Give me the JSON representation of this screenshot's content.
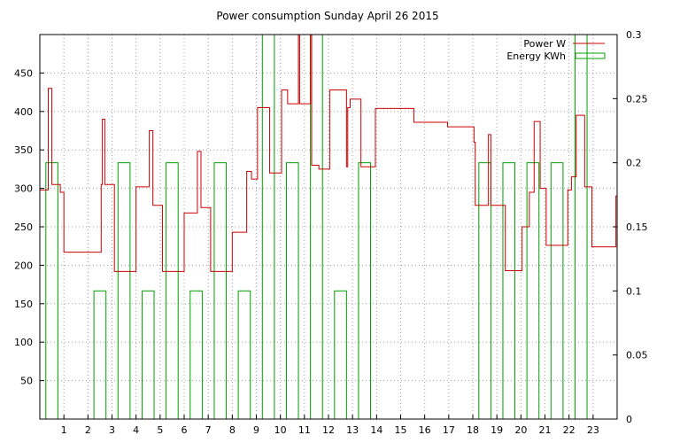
{
  "chart_data": {
    "type": "line",
    "title": "Power consumption Sunday April 26 2015",
    "xlabel": "",
    "ylabel": "",
    "x_ticks": [
      "1",
      "2",
      "3",
      "4",
      "5",
      "6",
      "7",
      "8",
      "9",
      "10",
      "11",
      "12",
      "13",
      "14",
      "15",
      "16",
      "17",
      "18",
      "19",
      "20",
      "21",
      "22",
      "23"
    ],
    "xlim": [
      0,
      24
    ],
    "ylim_left": [
      0,
      500
    ],
    "ylim_right": [
      0,
      0.3
    ],
    "y_ticks_left": [
      "50",
      "100",
      "150",
      "200",
      "250",
      "300",
      "350",
      "400",
      "450"
    ],
    "y_ticks_right": [
      "0",
      "0.05",
      "0.1",
      "0.15",
      "0.2",
      "0.25",
      "0.3"
    ],
    "grid": true,
    "legend_position": "top-right",
    "colors": {
      "power": "#cc0000",
      "energy": "#00a000"
    },
    "series": [
      {
        "name": "Power W",
        "axis": "left",
        "style": "step",
        "points": [
          [
            0.0,
            298
          ],
          [
            0.3,
            298
          ],
          [
            0.35,
            430
          ],
          [
            0.45,
            430
          ],
          [
            0.5,
            305
          ],
          [
            0.75,
            305
          ],
          [
            0.85,
            295
          ],
          [
            1.0,
            217
          ],
          [
            2.5,
            217
          ],
          [
            2.55,
            305
          ],
          [
            2.6,
            390
          ],
          [
            2.7,
            305
          ],
          [
            3.0,
            305
          ],
          [
            3.1,
            192
          ],
          [
            3.95,
            192
          ],
          [
            4.0,
            302
          ],
          [
            4.5,
            302
          ],
          [
            4.55,
            375
          ],
          [
            4.7,
            278
          ],
          [
            5.0,
            278
          ],
          [
            5.1,
            192
          ],
          [
            5.95,
            192
          ],
          [
            6.0,
            268
          ],
          [
            6.5,
            268
          ],
          [
            6.55,
            348
          ],
          [
            6.7,
            275
          ],
          [
            7.0,
            275
          ],
          [
            7.1,
            192
          ],
          [
            7.95,
            192
          ],
          [
            8.0,
            243
          ],
          [
            8.5,
            243
          ],
          [
            8.6,
            322
          ],
          [
            8.8,
            312
          ],
          [
            9.0,
            312
          ],
          [
            9.05,
            405
          ],
          [
            9.5,
            405
          ],
          [
            9.55,
            320
          ],
          [
            10.0,
            320
          ],
          [
            10.05,
            428
          ],
          [
            10.3,
            410
          ],
          [
            10.7,
            410
          ],
          [
            10.75,
            500
          ],
          [
            10.8,
            410
          ],
          [
            11.2,
            410
          ],
          [
            11.25,
            500
          ],
          [
            11.3,
            330
          ],
          [
            11.55,
            330
          ],
          [
            11.6,
            325
          ],
          [
            12.0,
            325
          ],
          [
            12.05,
            428
          ],
          [
            12.7,
            428
          ],
          [
            12.75,
            328
          ],
          [
            12.8,
            405
          ],
          [
            12.9,
            416
          ],
          [
            13.3,
            416
          ],
          [
            13.35,
            328
          ],
          [
            13.9,
            328
          ],
          [
            13.95,
            404
          ],
          [
            14.5,
            404
          ],
          [
            15.5,
            404
          ],
          [
            15.55,
            386
          ],
          [
            16.9,
            386
          ],
          [
            16.95,
            380
          ],
          [
            18.0,
            380
          ],
          [
            18.05,
            360
          ],
          [
            18.1,
            278
          ],
          [
            18.6,
            278
          ],
          [
            18.65,
            370
          ],
          [
            18.75,
            278
          ],
          [
            19.3,
            278
          ],
          [
            19.35,
            193
          ],
          [
            20.0,
            193
          ],
          [
            20.05,
            250
          ],
          [
            20.3,
            250
          ],
          [
            20.35,
            295
          ],
          [
            20.5,
            295
          ],
          [
            20.55,
            387
          ],
          [
            20.75,
            387
          ],
          [
            20.8,
            300
          ],
          [
            21.0,
            300
          ],
          [
            21.05,
            226
          ],
          [
            21.9,
            226
          ],
          [
            21.95,
            298
          ],
          [
            22.1,
            315
          ],
          [
            22.2,
            315
          ],
          [
            22.3,
            395
          ],
          [
            22.6,
            395
          ],
          [
            22.65,
            302
          ],
          [
            22.9,
            302
          ],
          [
            22.95,
            224
          ],
          [
            23.9,
            224
          ],
          [
            23.95,
            290
          ],
          [
            24.0,
            290
          ]
        ]
      },
      {
        "name": "Energy KWh",
        "axis": "right",
        "style": "impulse_boxes",
        "boxes": [
          [
            0.0,
            0.2
          ],
          [
            1.0,
            0.0
          ],
          [
            2.0,
            0.1
          ],
          [
            3.0,
            0.2
          ],
          [
            4.0,
            0.1
          ],
          [
            5.0,
            0.2
          ],
          [
            6.0,
            0.1
          ],
          [
            7.0,
            0.2
          ],
          [
            8.0,
            0.1
          ],
          [
            9.0,
            0.3
          ],
          [
            10.0,
            0.2
          ],
          [
            11.0,
            0.3
          ],
          [
            12.0,
            0.1
          ],
          [
            13.0,
            0.2
          ],
          [
            14.0,
            0.0
          ],
          [
            15.0,
            0.0
          ],
          [
            16.0,
            0.0
          ],
          [
            17.0,
            0.0
          ],
          [
            18.0,
            0.2
          ],
          [
            19.0,
            0.2
          ],
          [
            20.0,
            0.2
          ],
          [
            21.0,
            0.2
          ],
          [
            22.0,
            0.3
          ],
          [
            23.0,
            0.0
          ]
        ]
      }
    ]
  }
}
